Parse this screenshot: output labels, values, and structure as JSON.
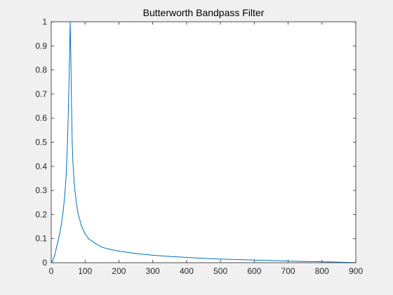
{
  "chart_data": {
    "type": "line",
    "title": "Butterworth Bandpass Filter",
    "xlabel": "",
    "ylabel": "",
    "xlim": [
      0,
      900
    ],
    "ylim": [
      0,
      1
    ],
    "x_ticks": [
      0,
      100,
      200,
      300,
      400,
      500,
      600,
      700,
      800,
      900
    ],
    "x_tick_labels": [
      "0",
      "100",
      "200",
      "300",
      "400",
      "500",
      "600",
      "700",
      "800",
      "900"
    ],
    "y_ticks": [
      0,
      0.1,
      0.2,
      0.3,
      0.4,
      0.5,
      0.6,
      0.7,
      0.8,
      0.9,
      1
    ],
    "y_tick_labels": [
      "0",
      "0.1",
      "0.2",
      "0.3",
      "0.4",
      "0.5",
      "0.6",
      "0.7",
      "0.8",
      "0.9",
      "1"
    ],
    "grid": false,
    "box": true,
    "series": [
      {
        "color": "#0072bd",
        "x": [
          0,
          5,
          10,
          15,
          20,
          25,
          30,
          35,
          40,
          44,
          48,
          51,
          54,
          56,
          58,
          60,
          62,
          64,
          67,
          70,
          75,
          80,
          90,
          100,
          110,
          120,
          130,
          150,
          175,
          200,
          250,
          300,
          350,
          400,
          450,
          500,
          550,
          600,
          650,
          700,
          750,
          800,
          850,
          900
        ],
        "y": [
          0,
          0.01,
          0.03,
          0.06,
          0.09,
          0.12,
          0.16,
          0.21,
          0.28,
          0.36,
          0.5,
          0.65,
          0.85,
          1.0,
          0.85,
          0.65,
          0.5,
          0.42,
          0.35,
          0.3,
          0.24,
          0.2,
          0.15,
          0.12,
          0.1,
          0.09,
          0.08,
          0.064,
          0.055,
          0.048,
          0.038,
          0.031,
          0.026,
          0.022,
          0.018,
          0.015,
          0.013,
          0.011,
          0.009,
          0.007,
          0.005,
          0.004,
          0.002,
          0.0
        ]
      }
    ]
  }
}
